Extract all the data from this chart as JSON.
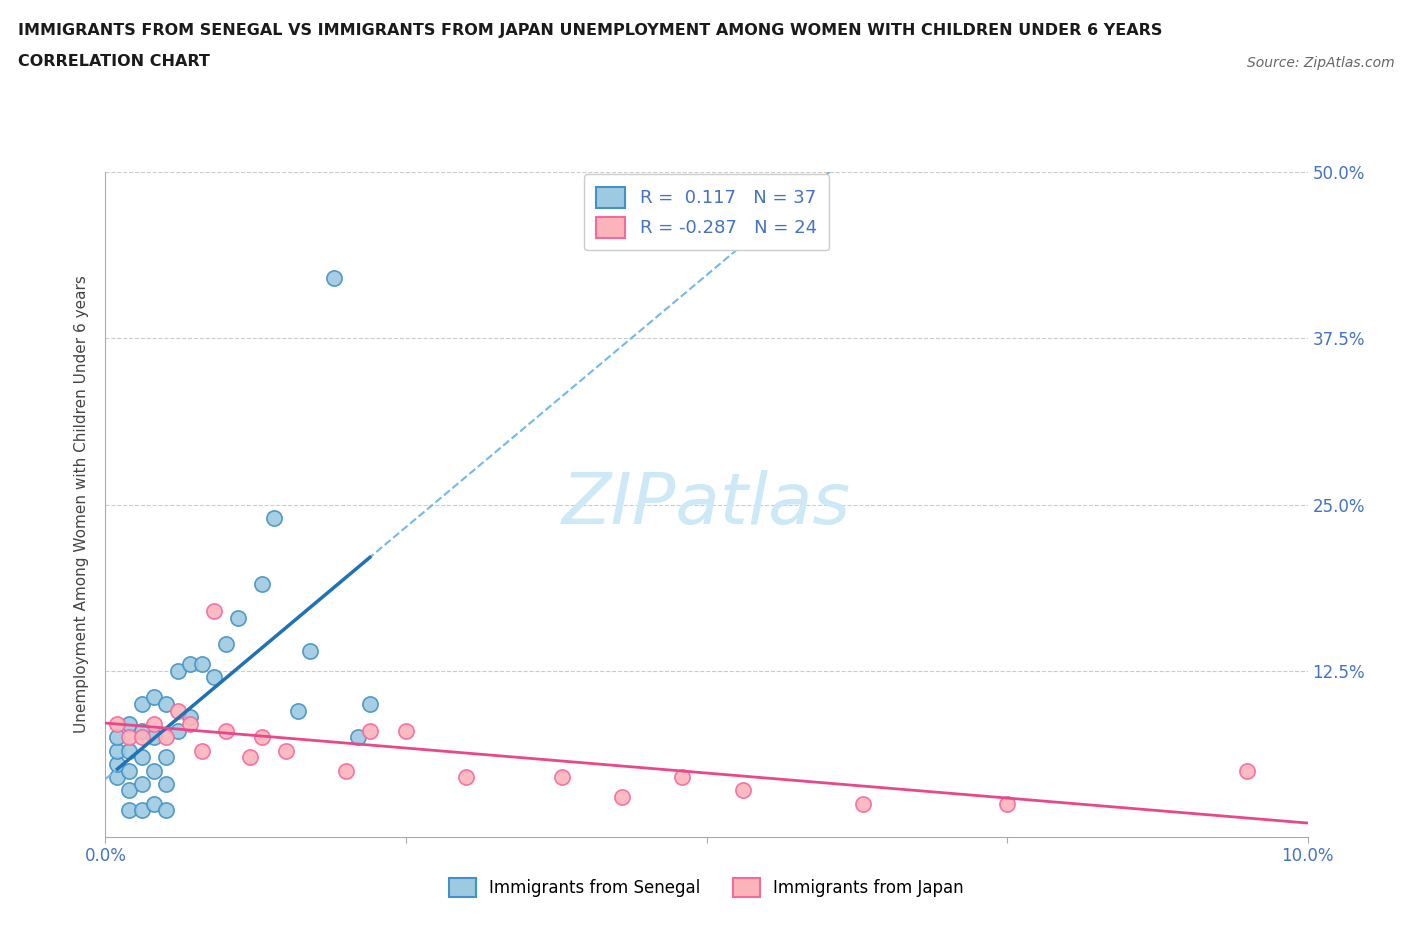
{
  "title_line1": "IMMIGRANTS FROM SENEGAL VS IMMIGRANTS FROM JAPAN UNEMPLOYMENT AMONG WOMEN WITH CHILDREN UNDER 6 YEARS",
  "title_line2": "CORRELATION CHART",
  "source": "Source: ZipAtlas.com",
  "ylabel": "Unemployment Among Women with Children Under 6 years",
  "xlim": [
    0.0,
    0.1
  ],
  "ylim": [
    0.0,
    0.5
  ],
  "xticks": [
    0.0,
    0.025,
    0.05,
    0.075,
    0.1
  ],
  "yticks": [
    0.0,
    0.125,
    0.25,
    0.375,
    0.5
  ],
  "xtick_labels_show": [
    "0.0%",
    "10.0%"
  ],
  "ytick_labels_show": [
    "12.5%",
    "25.0%",
    "37.5%",
    "50.0%"
  ],
  "grid_color": "#cccccc",
  "blue_label_color": "#4472c4",
  "watermark_color": "#cde8f6",
  "senegal_color": "#9ecae1",
  "senegal_edge": "#4292c6",
  "japan_color": "#fbb4b9",
  "japan_edge": "#f768a1",
  "senegal_R": 0.117,
  "senegal_N": 37,
  "japan_R": -0.287,
  "japan_N": 24,
  "senegal_line_color": "#2171b5",
  "senegal_dash_color": "#74b9e8",
  "japan_line_color": "#e8488a",
  "senegal_x": [
    0.001,
    0.001,
    0.001,
    0.001,
    0.002,
    0.002,
    0.002,
    0.002,
    0.002,
    0.003,
    0.003,
    0.003,
    0.003,
    0.003,
    0.004,
    0.004,
    0.004,
    0.004,
    0.005,
    0.005,
    0.005,
    0.005,
    0.006,
    0.006,
    0.007,
    0.007,
    0.008,
    0.009,
    0.01,
    0.011,
    0.013,
    0.014,
    0.016,
    0.017,
    0.019,
    0.021,
    0.022
  ],
  "senegal_y": [
    0.045,
    0.055,
    0.065,
    0.075,
    0.02,
    0.035,
    0.05,
    0.065,
    0.085,
    0.02,
    0.04,
    0.06,
    0.08,
    0.1,
    0.025,
    0.05,
    0.075,
    0.105,
    0.02,
    0.04,
    0.06,
    0.1,
    0.08,
    0.125,
    0.09,
    0.13,
    0.13,
    0.12,
    0.145,
    0.165,
    0.19,
    0.24,
    0.095,
    0.14,
    0.42,
    0.075,
    0.1
  ],
  "japan_x": [
    0.001,
    0.002,
    0.003,
    0.004,
    0.005,
    0.006,
    0.007,
    0.008,
    0.009,
    0.01,
    0.012,
    0.013,
    0.015,
    0.02,
    0.022,
    0.025,
    0.03,
    0.038,
    0.043,
    0.048,
    0.053,
    0.063,
    0.075,
    0.095
  ],
  "japan_y": [
    0.085,
    0.075,
    0.075,
    0.085,
    0.075,
    0.095,
    0.085,
    0.065,
    0.17,
    0.08,
    0.06,
    0.075,
    0.065,
    0.05,
    0.08,
    0.08,
    0.045,
    0.045,
    0.03,
    0.045,
    0.035,
    0.025,
    0.025,
    0.05
  ]
}
